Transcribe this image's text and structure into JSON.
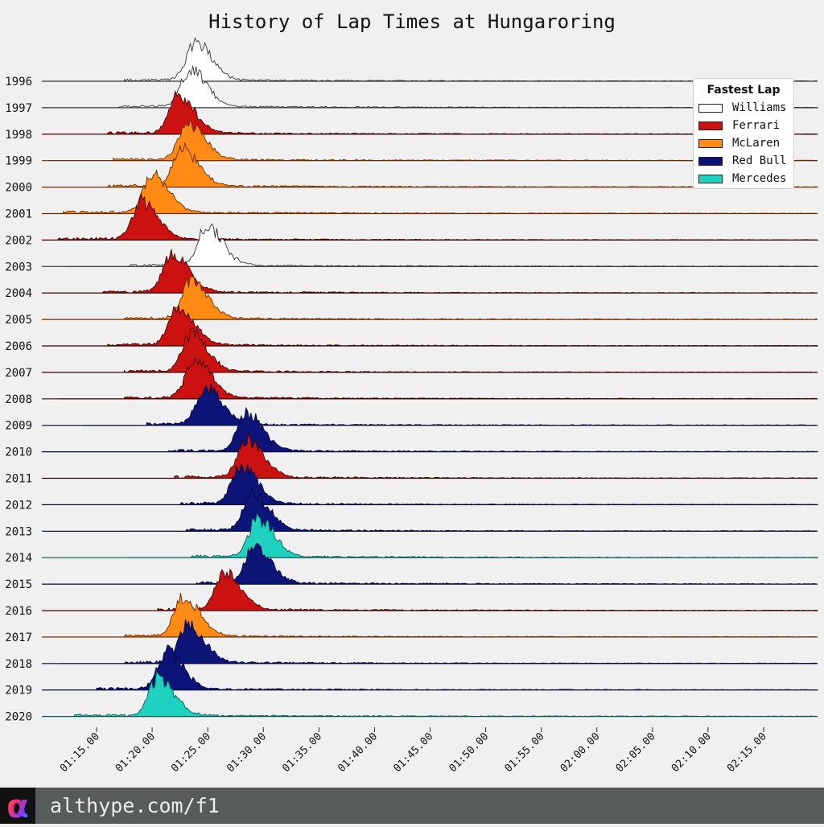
{
  "chart_data": {
    "type": "area",
    "title": "History of Lap Times at Hungaroring",
    "x_ticks": [
      "01:15.00",
      "01:20.00",
      "01:25.00",
      "01:30.00",
      "01:35.00",
      "01:40.00",
      "01:45.00",
      "01:50.00",
      "01:55.00",
      "02:00.00",
      "02:05.00",
      "02:10.00",
      "02:15.00"
    ],
    "x_tick_seconds": [
      75,
      80,
      85,
      90,
      95,
      100,
      105,
      110,
      115,
      120,
      125,
      130,
      135
    ],
    "xlim_seconds": [
      71,
      140
    ],
    "legend": {
      "title": "Fastest Lap",
      "placement": "top-right",
      "entries": [
        {
          "name": "Williams",
          "color": "#ffffff"
        },
        {
          "name": "Ferrari",
          "color": "#cc1111"
        },
        {
          "name": "McLaren",
          "color": "#ff8a14"
        },
        {
          "name": "Red Bull",
          "color": "#0d1478"
        },
        {
          "name": "Mercedes",
          "color": "#1fd2c0"
        }
      ]
    },
    "series": [
      {
        "year": "1996",
        "team": "Williams",
        "peak_seconds": 83.9,
        "min_seconds": 77.5,
        "max_seconds": 140
      },
      {
        "year": "1997",
        "team": "Williams",
        "peak_seconds": 83.4,
        "min_seconds": 77.0,
        "max_seconds": 140
      },
      {
        "year": "1998",
        "team": "Ferrari",
        "peak_seconds": 82.3,
        "min_seconds": 76.0,
        "max_seconds": 140
      },
      {
        "year": "1999",
        "team": "McLaren",
        "peak_seconds": 83.2,
        "min_seconds": 76.5,
        "max_seconds": 140
      },
      {
        "year": "2000",
        "team": "McLaren",
        "peak_seconds": 82.7,
        "min_seconds": 76.0,
        "max_seconds": 140
      },
      {
        "year": "2001",
        "team": "McLaren",
        "peak_seconds": 80.0,
        "min_seconds": 72.0,
        "max_seconds": 140
      },
      {
        "year": "2002",
        "team": "Ferrari",
        "peak_seconds": 79.0,
        "min_seconds": 71.5,
        "max_seconds": 140
      },
      {
        "year": "2003",
        "team": "Williams",
        "peak_seconds": 84.9,
        "min_seconds": 78.0,
        "max_seconds": 140
      },
      {
        "year": "2004",
        "team": "Ferrari",
        "peak_seconds": 81.8,
        "min_seconds": 75.5,
        "max_seconds": 140
      },
      {
        "year": "2005",
        "team": "McLaren",
        "peak_seconds": 83.5,
        "min_seconds": 77.5,
        "max_seconds": 140
      },
      {
        "year": "2006",
        "team": "Ferrari",
        "peak_seconds": 82.3,
        "min_seconds": 76.0,
        "max_seconds": 140
      },
      {
        "year": "2007",
        "team": "Ferrari",
        "peak_seconds": 83.5,
        "min_seconds": 77.5,
        "max_seconds": 140
      },
      {
        "year": "2008",
        "team": "Ferrari",
        "peak_seconds": 83.8,
        "min_seconds": 77.5,
        "max_seconds": 140
      },
      {
        "year": "2009",
        "team": "Red Bull",
        "peak_seconds": 84.8,
        "min_seconds": 79.5,
        "max_seconds": 140
      },
      {
        "year": "2010",
        "team": "Red Bull",
        "peak_seconds": 88.5,
        "min_seconds": 81.5,
        "max_seconds": 140
      },
      {
        "year": "2011",
        "team": "Ferrari",
        "peak_seconds": 88.5,
        "min_seconds": 82.0,
        "max_seconds": 140
      },
      {
        "year": "2012",
        "team": "Red Bull",
        "peak_seconds": 88.0,
        "min_seconds": 82.5,
        "max_seconds": 140
      },
      {
        "year": "2013",
        "team": "Red Bull",
        "peak_seconds": 89.0,
        "min_seconds": 83.0,
        "max_seconds": 140
      },
      {
        "year": "2014",
        "team": "Mercedes",
        "peak_seconds": 89.5,
        "min_seconds": 83.5,
        "max_seconds": 140
      },
      {
        "year": "2015",
        "team": "Red Bull",
        "peak_seconds": 89.2,
        "min_seconds": 84.0,
        "max_seconds": 140
      },
      {
        "year": "2016",
        "team": "Ferrari",
        "peak_seconds": 86.5,
        "min_seconds": 80.5,
        "max_seconds": 140
      },
      {
        "year": "2017",
        "team": "McLaren",
        "peak_seconds": 82.8,
        "min_seconds": 77.5,
        "max_seconds": 140
      },
      {
        "year": "2018",
        "team": "Red Bull",
        "peak_seconds": 83.2,
        "min_seconds": 77.5,
        "max_seconds": 140
      },
      {
        "year": "2019",
        "team": "Red Bull",
        "peak_seconds": 81.3,
        "min_seconds": 75.0,
        "max_seconds": 140
      },
      {
        "year": "2020",
        "team": "Mercedes",
        "peak_seconds": 80.5,
        "min_seconds": 73.0,
        "max_seconds": 140
      }
    ]
  },
  "footer": {
    "logo_glyph": "α",
    "url": "althype.com/f1"
  }
}
